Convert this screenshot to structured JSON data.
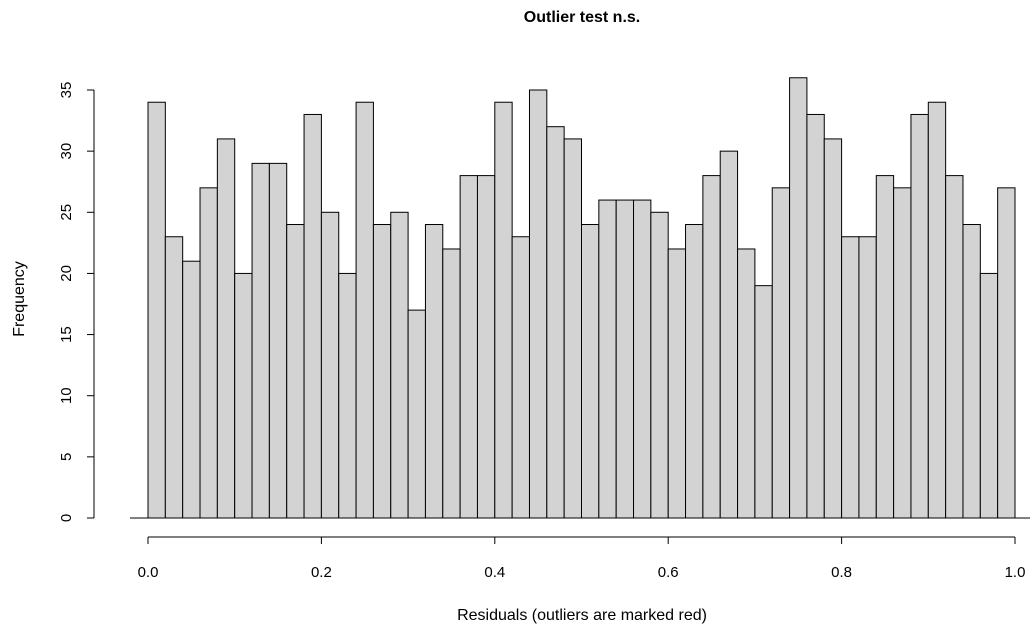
{
  "chart_data": {
    "type": "bar",
    "title": "Outlier test n.s.",
    "xlabel": "Residuals (outliers are marked red)",
    "ylabel": "Frequency",
    "bin_start": 0.0,
    "bin_width": 0.02,
    "values": [
      34,
      23,
      21,
      27,
      31,
      20,
      29,
      29,
      24,
      33,
      25,
      20,
      34,
      24,
      25,
      17,
      24,
      22,
      28,
      28,
      34,
      23,
      35,
      32,
      31,
      24,
      26,
      26,
      26,
      25,
      22,
      24,
      28,
      30,
      22,
      19,
      27,
      36,
      33,
      31,
      23,
      23,
      28,
      27,
      33,
      34,
      28,
      24,
      20,
      27
    ],
    "xlim": [
      0,
      1
    ],
    "ylim": [
      0,
      35
    ],
    "x_ticks": [
      0.0,
      0.2,
      0.4,
      0.6,
      0.8,
      1.0
    ],
    "x_tick_labels": [
      "0.0",
      "0.2",
      "0.4",
      "0.6",
      "0.8",
      "1.0"
    ],
    "y_ticks": [
      0,
      5,
      10,
      15,
      20,
      25,
      30,
      35
    ],
    "y_tick_labels": [
      "0",
      "5",
      "10",
      "15",
      "20",
      "25",
      "30",
      "35"
    ],
    "grid": false,
    "bar_color": "#d3d3d3",
    "bar_border_color": "#000000"
  }
}
